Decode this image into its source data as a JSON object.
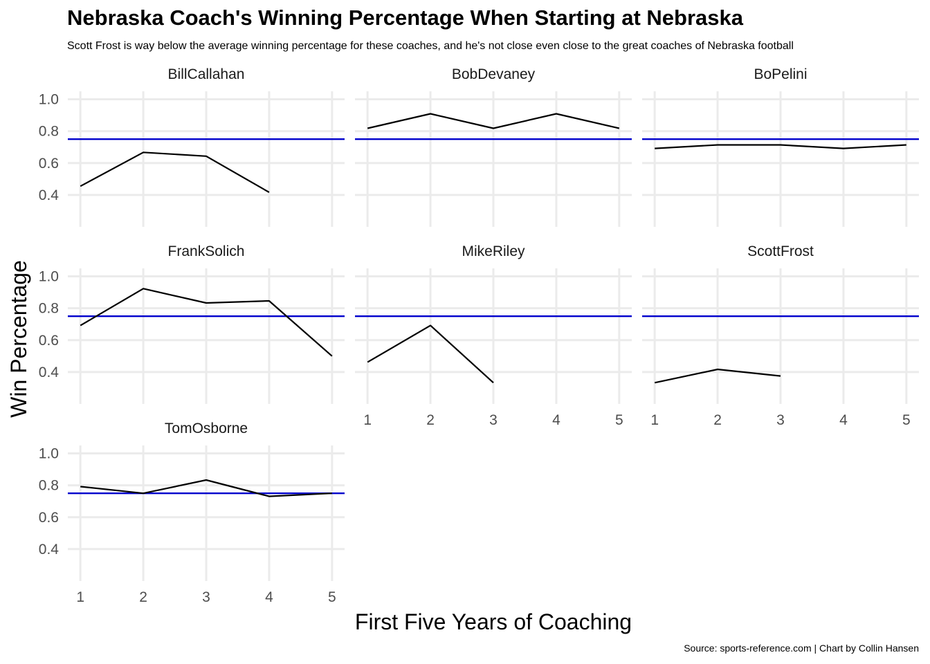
{
  "chart_data": {
    "type": "line",
    "title": "Nebraska Coach's Winning Percentage When Starting at Nebraska",
    "subtitle": "Scott Frost is way below the average winning percentage for these coaches, and he's not close even close to the great coaches of Nebraska football",
    "caption": "Source: sports-reference.com | Chart by Collin Hansen",
    "xlabel": "First Five Years of Coaching",
    "ylabel": "Win Percentage",
    "x_ticks": [
      1,
      2,
      3,
      4,
      5
    ],
    "y_ticks": [
      0.4,
      0.6,
      0.8,
      1.0
    ],
    "y_tick_labels": [
      "0.4",
      "0.6",
      "0.8",
      "1.0"
    ],
    "xlim": [
      0.8,
      5.2
    ],
    "ylim": [
      0.2,
      1.05
    ],
    "reference_line": {
      "y": 0.75,
      "color": "#0000cc"
    },
    "series_color": "#000000",
    "grid": true,
    "legend": "none",
    "facets": [
      {
        "name": "BillCallahan",
        "x": [
          1,
          2,
          3,
          4
        ],
        "values": [
          0.455,
          0.667,
          0.643,
          0.417
        ]
      },
      {
        "name": "BobDevaney",
        "x": [
          1,
          2,
          3,
          4,
          5
        ],
        "values": [
          0.818,
          0.909,
          0.818,
          0.909,
          0.818
        ]
      },
      {
        "name": "BoPelini",
        "x": [
          1,
          2,
          3,
          4,
          5
        ],
        "values": [
          0.692,
          0.714,
          0.714,
          0.692,
          0.714
        ]
      },
      {
        "name": "FrankSolich",
        "x": [
          1,
          2,
          3,
          4,
          5
        ],
        "values": [
          0.692,
          0.923,
          0.833,
          0.846,
          0.5
        ]
      },
      {
        "name": "MikeRiley",
        "x": [
          1,
          2,
          3
        ],
        "values": [
          0.462,
          0.692,
          0.333
        ]
      },
      {
        "name": "ScottFrost",
        "x": [
          1,
          2,
          3
        ],
        "values": [
          0.333,
          0.417,
          0.375
        ]
      },
      {
        "name": "TomOsborne",
        "x": [
          1,
          2,
          3,
          4,
          5
        ],
        "values": [
          0.792,
          0.75,
          0.833,
          0.731,
          0.75
        ]
      }
    ]
  }
}
